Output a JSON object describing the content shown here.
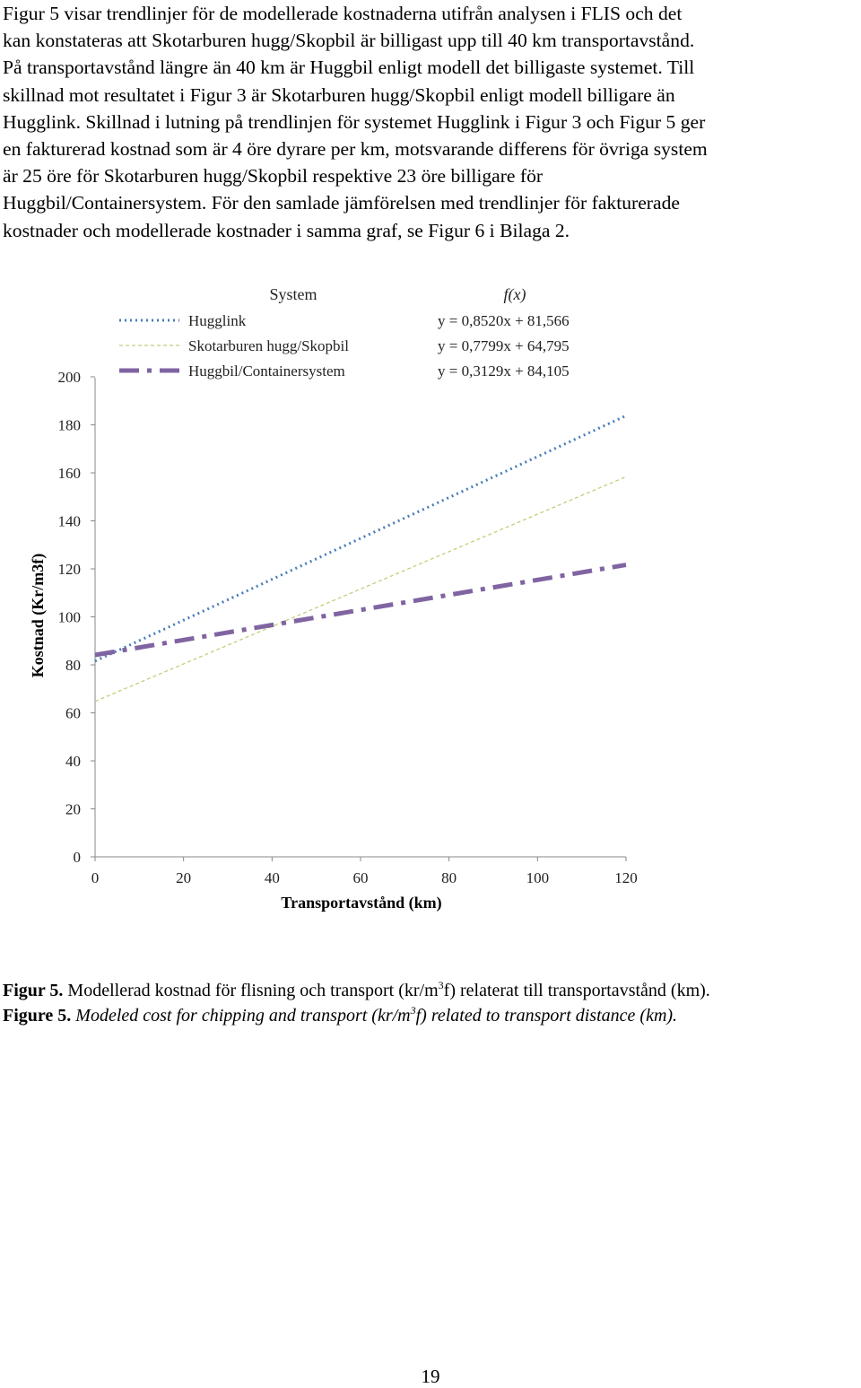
{
  "body_lines": [
    "Figur 5 visar trendlinjer för de modellerade kostnaderna utifrån analysen i FLIS och det",
    "kan konstateras att Skotarburen hugg/Skopbil är billigast upp till 40 km transportavstånd.",
    "På transportavstånd längre än 40 km är Huggbil enligt modell det billigaste systemet. Till",
    "skillnad mot resultatet i Figur 3 är Skotarburen hugg/Skopbil enligt modell billigare än",
    "Hugglink. Skillnad i lutning på trendlinjen för systemet Hugglink i Figur 3 och Figur 5 ger",
    "en fakturerad kostnad som är 4 öre dyrare per km, motsvarande differens för övriga system",
    "är 25 öre för Skotarburen hugg/Skopbil respektive 23 öre billigare för",
    "Huggbil/Containersystem. För den samlade jämförelsen med trendlinjer för fakturerade",
    "kostnader och modellerade kostnader i samma graf, se Figur 6 i Bilaga 2."
  ],
  "chart_data": {
    "type": "line",
    "xlabel": "Transportavstånd (km)",
    "ylabel": "Kostnad (Kr/m3f)",
    "xlim": [
      0,
      120
    ],
    "ylim": [
      0,
      200
    ],
    "xticks": [
      "0",
      "20",
      "40",
      "60",
      "80",
      "100",
      "120"
    ],
    "yticks": [
      "0",
      "20",
      "40",
      "60",
      "80",
      "100",
      "120",
      "140",
      "160",
      "180",
      "200"
    ],
    "grid": false,
    "legend_position": "top",
    "legend_headers": {
      "system": "System",
      "fx": "f(x)"
    },
    "series": [
      {
        "name": "Hugglink",
        "slope": 0.852,
        "intercept": 81.566,
        "equation": "y = 0,8520x + 81,566",
        "color": "#4a7ebb",
        "style": "dotted",
        "x": [
          0,
          120
        ]
      },
      {
        "name": "Skotarburen hugg/Skopbil",
        "slope": 0.7799,
        "intercept": 64.795,
        "equation": "y = 0,7799x + 64,795",
        "color": "#c8cc7a",
        "style": "dashed",
        "x": [
          0,
          120
        ]
      },
      {
        "name": "Huggbil/Containersystem",
        "slope": 0.3129,
        "intercept": 84.105,
        "equation": "y = 0,3129x + 84,105",
        "color": "#8064a2",
        "style": "dash-dot",
        "x": [
          0,
          120
        ]
      }
    ]
  },
  "captions": {
    "sv": {
      "label": "Figur 5.",
      "text_before": "Modellerad kostnad för flisning och transport (kr/m",
      "sup": "3",
      "text_after": "f) relaterat till transportavstånd (km)."
    },
    "en": {
      "label": "Figure 5.",
      "text_before": "Modeled cost for chipping and transport (kr/m",
      "sup": "3",
      "text_after": "f) related to transport distance (km)."
    }
  },
  "page_number": "19"
}
